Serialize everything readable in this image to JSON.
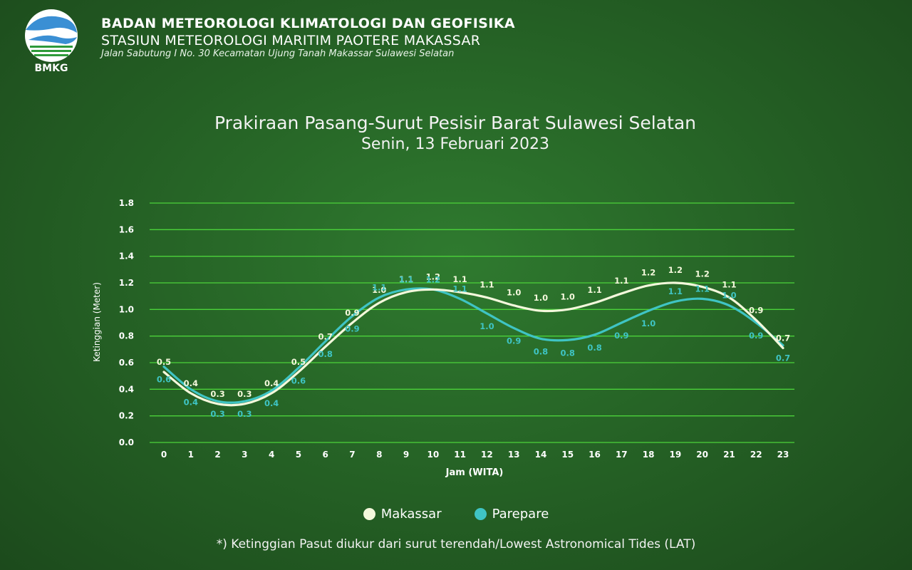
{
  "header": {
    "logo_text": "BMKG",
    "org_title": "BADAN METEOROLOGI KLIMATOLOGI DAN GEOFISIKA",
    "station_title": "STASIUN METEOROLOGI MARITIM PAOTERE MAKASSAR",
    "address": "Jalan Sabutung I No. 30 Kecamatan Ujung Tanah Makassar Sulawesi Selatan"
  },
  "colors": {
    "background": "#256325",
    "grid": "#4bd23a",
    "makassar": "#f4f8dc",
    "parepare": "#3fc4c4"
  },
  "footnote": "*) Ketinggian Pasut diukur dari surut terendah/Lowest Astronomical Tides (LAT)",
  "chart_data": {
    "type": "line",
    "title": "Prakiraan Pasang-Surut Pesisir Barat Sulawesi Selatan",
    "subtitle": "Senin, 13 Februari 2023",
    "xlabel": "Jam (WITA)",
    "ylabel": "Ketinggian (Meter)",
    "ylim": [
      0,
      1.8
    ],
    "yticks": [
      "0.0",
      "0.2",
      "0.4",
      "0.6",
      "0.8",
      "1.0",
      "1.2",
      "1.4",
      "1.6",
      "1.8"
    ],
    "grid": true,
    "legend_position": "bottom",
    "x": [
      "0",
      "1",
      "2",
      "3",
      "4",
      "5",
      "6",
      "7",
      "8",
      "9",
      "10",
      "11",
      "12",
      "13",
      "14",
      "15",
      "16",
      "17",
      "18",
      "19",
      "20",
      "21",
      "22",
      "23"
    ],
    "series": [
      {
        "name": "Makassar",
        "values": [
          0.53,
          0.37,
          0.29,
          0.29,
          0.37,
          0.53,
          0.72,
          0.9,
          1.05,
          1.13,
          1.15,
          1.13,
          1.09,
          1.03,
          0.99,
          1.0,
          1.05,
          1.12,
          1.18,
          1.2,
          1.17,
          1.09,
          0.92,
          0.71
        ],
        "labels": [
          "0.5",
          "0.4",
          "0.3",
          "0.3",
          "0.4",
          "0.5",
          "0.7",
          "0.9",
          "1.0",
          "1.1",
          "1.2",
          "1.1",
          "1.1",
          "1.0",
          "1.0",
          "1.0",
          "1.1",
          "1.1",
          "1.2",
          "1.2",
          "1.2",
          "1.1",
          "0.9",
          "0.7"
        ]
      },
      {
        "name": "Parepare",
        "values": [
          0.57,
          0.4,
          0.31,
          0.31,
          0.39,
          0.56,
          0.76,
          0.95,
          1.09,
          1.15,
          1.15,
          1.08,
          0.97,
          0.86,
          0.78,
          0.77,
          0.81,
          0.9,
          0.99,
          1.06,
          1.08,
          1.03,
          0.9,
          0.73
        ],
        "labels": [
          "0.6",
          "0.4",
          "0.3",
          "0.3",
          "0.4",
          "0.6",
          "0.8",
          "0.9",
          "1.1",
          "1.1",
          "1.2",
          "1.1",
          "1.0",
          "0.9",
          "0.8",
          "0.8",
          "0.8",
          "0.9",
          "1.0",
          "1.1",
          "1.1",
          "1.0",
          "0.9",
          "0.7"
        ]
      }
    ]
  }
}
